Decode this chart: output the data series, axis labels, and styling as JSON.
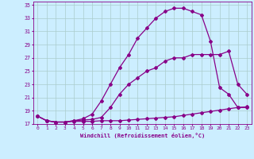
{
  "xlabel": "Windchill (Refroidissement éolien,°C)",
  "bg_color": "#cceeff",
  "grid_color": "#aacccc",
  "line_color": "#880088",
  "x_data": [
    0,
    1,
    2,
    3,
    4,
    5,
    6,
    7,
    8,
    9,
    10,
    11,
    12,
    13,
    14,
    15,
    16,
    17,
    18,
    19,
    20,
    21,
    22,
    23
  ],
  "line1_y": [
    18.2,
    17.5,
    17.3,
    17.3,
    17.4,
    17.4,
    17.4,
    17.5,
    17.5,
    17.5,
    17.6,
    17.7,
    17.8,
    17.9,
    18.0,
    18.1,
    18.3,
    18.5,
    18.7,
    18.9,
    19.1,
    19.3,
    19.5,
    19.6
  ],
  "line2_y": [
    18.2,
    17.5,
    17.3,
    17.3,
    17.5,
    17.6,
    17.7,
    18.0,
    19.5,
    21.5,
    23.0,
    24.0,
    25.0,
    25.5,
    26.5,
    27.0,
    27.0,
    27.5,
    27.5,
    27.5,
    27.5,
    28.0,
    23.0,
    21.5
  ],
  "line3_y": [
    18.2,
    17.5,
    17.3,
    17.3,
    17.5,
    17.8,
    18.5,
    20.5,
    23.0,
    25.5,
    27.5,
    30.0,
    31.5,
    33.0,
    34.0,
    34.5,
    34.5,
    34.0,
    33.5,
    29.5,
    22.5,
    21.5,
    19.5,
    19.5
  ],
  "xlim": [
    -0.5,
    23.5
  ],
  "ylim": [
    17,
    35.5
  ],
  "yticks": [
    17,
    19,
    21,
    23,
    25,
    27,
    29,
    31,
    33,
    35
  ],
  "xticks": [
    0,
    1,
    2,
    3,
    4,
    5,
    6,
    7,
    8,
    9,
    10,
    11,
    12,
    13,
    14,
    15,
    16,
    17,
    18,
    19,
    20,
    21,
    22,
    23
  ],
  "marker": "D",
  "markersize": 2.0,
  "linewidth": 0.9
}
